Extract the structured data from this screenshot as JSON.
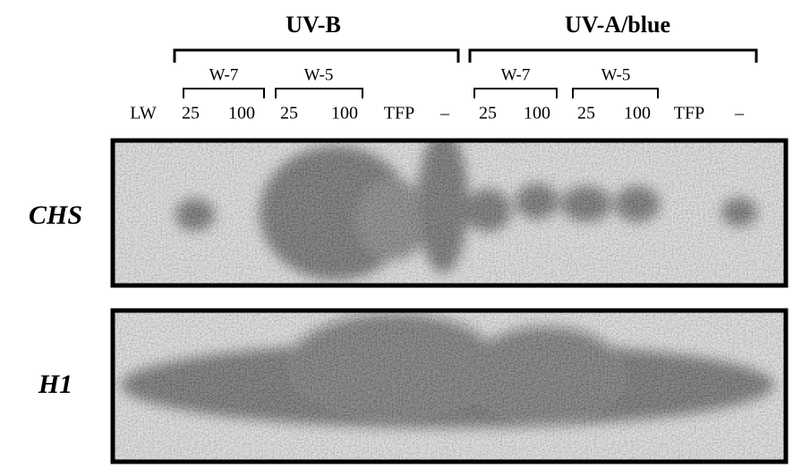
{
  "groups": [
    {
      "label": "UV-B",
      "subgroups": [
        "W-7",
        "W-5"
      ]
    },
    {
      "label": "UV-A/blue",
      "subgroups": [
        "W-7",
        "W-5"
      ]
    }
  ],
  "lanes": [
    "LW",
    "25",
    "100",
    "25",
    "100",
    "TFP",
    "–",
    "25",
    "100",
    "25",
    "100",
    "TFP",
    "–"
  ],
  "rows": [
    "CHS",
    "H1"
  ]
}
